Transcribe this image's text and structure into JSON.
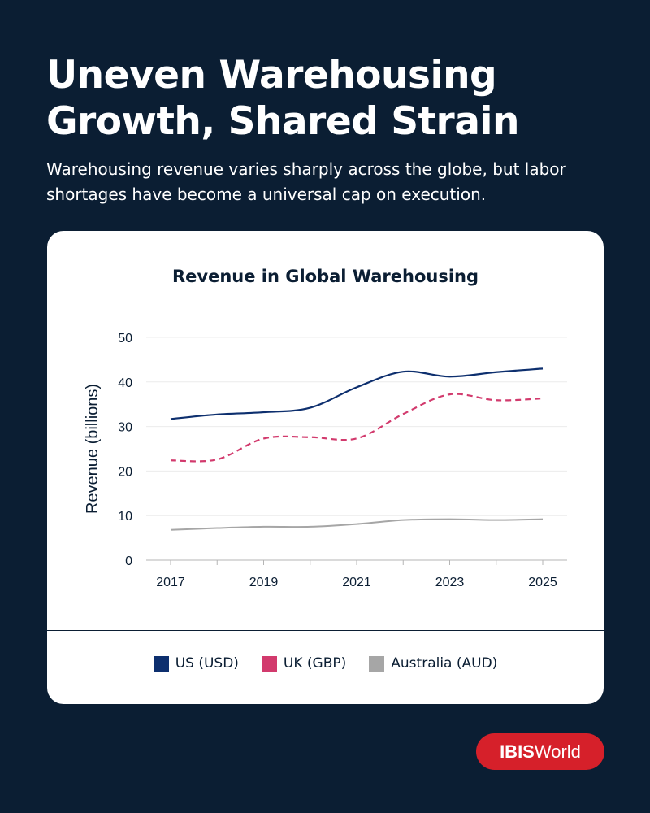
{
  "header": {
    "title": "Uneven Warehousing Growth, Shared Strain",
    "subtitle": "Warehousing revenue varies sharply across the globe, but labor shortages have become a universal cap on execution."
  },
  "chart_data": {
    "type": "line",
    "title": "Revenue in Global Warehousing",
    "xlabel": "",
    "ylabel": "Revenue (billions)",
    "x": [
      2017,
      2018,
      2019,
      2020,
      2021,
      2022,
      2023,
      2024,
      2025
    ],
    "xticks": [
      "2017",
      "2019",
      "2021",
      "2023",
      "2025"
    ],
    "yticks": [
      "0",
      "10",
      "20",
      "30",
      "40",
      "50"
    ],
    "ylim": [
      0,
      50
    ],
    "grid": true,
    "legend": "bottom",
    "series": [
      {
        "name": "US (USD)",
        "color": "#0d2f6e",
        "style": "solid",
        "values": [
          31.7,
          32.7,
          33.2,
          34.2,
          38.8,
          42.3,
          41.2,
          42.2,
          43.0
        ]
      },
      {
        "name": "UK (GBP)",
        "color": "#d23a6d",
        "style": "dashed",
        "values": [
          22.4,
          22.6,
          27.3,
          27.6,
          27.3,
          32.8,
          37.2,
          35.9,
          36.3
        ]
      },
      {
        "name": "Australia (AUD)",
        "color": "#a6a6a6",
        "style": "solid",
        "values": [
          6.8,
          7.2,
          7.5,
          7.5,
          8.1,
          9.0,
          9.2,
          9.0,
          9.2
        ]
      }
    ]
  },
  "brand": {
    "part1": "IBIS",
    "part2": "World"
  }
}
